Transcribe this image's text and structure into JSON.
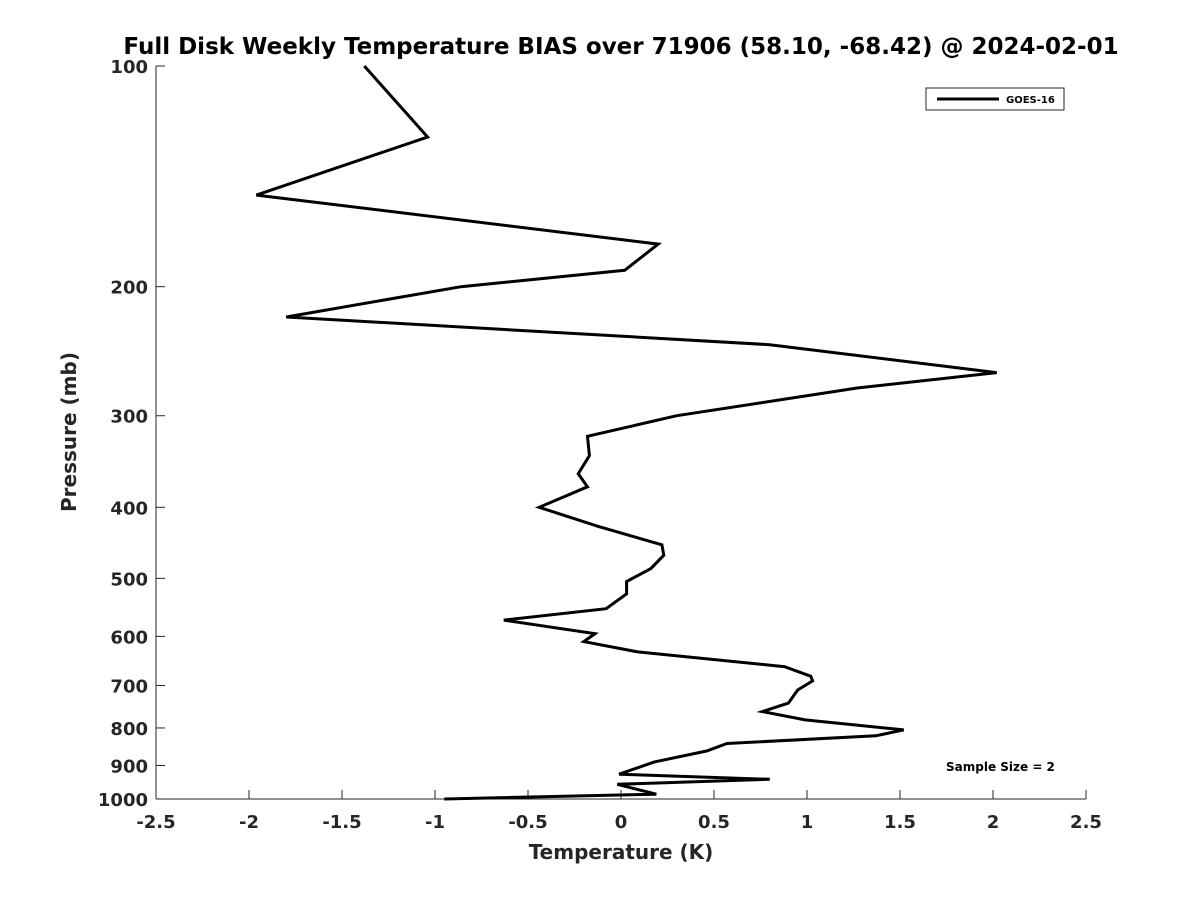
{
  "chart_data": {
    "type": "line",
    "title": "Full Disk Weekly Temperature BIAS over 71906 (58.10, -68.42) @ 2024-02-01",
    "xlabel": "Temperature (K)",
    "ylabel": "Pressure (mb)",
    "xlim": [
      -2.5,
      2.5
    ],
    "ylim": [
      100,
      1000
    ],
    "y_scale": "log",
    "y_reversed": true,
    "grid": false,
    "legend_position": "top-right",
    "x_ticks": [
      -2.5,
      -2,
      -1.5,
      -1,
      -0.5,
      0,
      0.5,
      1,
      1.5,
      2,
      2.5
    ],
    "x_tick_labels": [
      "-2.5",
      "-2",
      "-1.5",
      "-1",
      "-0.5",
      "0",
      "0.5",
      "1",
      "1.5",
      "2",
      "2.5"
    ],
    "y_ticks": [
      100,
      200,
      300,
      400,
      500,
      600,
      700,
      800,
      900,
      1000
    ],
    "y_tick_labels": [
      "100",
      "200",
      "300",
      "400",
      "500",
      "600",
      "700",
      "800",
      "900",
      "1000"
    ],
    "series": [
      {
        "name": "GOES-16",
        "color": "#000000",
        "points": [
          {
            "x": -1.38,
            "p": 100
          },
          {
            "x": -1.04,
            "p": 125
          },
          {
            "x": -1.96,
            "p": 150
          },
          {
            "x": 0.2,
            "p": 175
          },
          {
            "x": 0.02,
            "p": 190
          },
          {
            "x": -0.86,
            "p": 200
          },
          {
            "x": -1.8,
            "p": 220
          },
          {
            "x": 0.8,
            "p": 240
          },
          {
            "x": 2.02,
            "p": 262
          },
          {
            "x": 1.27,
            "p": 275
          },
          {
            "x": 0.3,
            "p": 300
          },
          {
            "x": -0.18,
            "p": 320
          },
          {
            "x": -0.17,
            "p": 340
          },
          {
            "x": -0.23,
            "p": 360
          },
          {
            "x": -0.18,
            "p": 375
          },
          {
            "x": -0.44,
            "p": 400
          },
          {
            "x": -0.12,
            "p": 425
          },
          {
            "x": 0.22,
            "p": 450
          },
          {
            "x": 0.23,
            "p": 465
          },
          {
            "x": 0.16,
            "p": 485
          },
          {
            "x": 0.03,
            "p": 505
          },
          {
            "x": 0.03,
            "p": 525
          },
          {
            "x": -0.08,
            "p": 550
          },
          {
            "x": -0.63,
            "p": 570
          },
          {
            "x": -0.14,
            "p": 595
          },
          {
            "x": -0.2,
            "p": 610
          },
          {
            "x": 0.09,
            "p": 630
          },
          {
            "x": 0.88,
            "p": 660
          },
          {
            "x": 1.02,
            "p": 680
          },
          {
            "x": 1.03,
            "p": 690
          },
          {
            "x": 0.95,
            "p": 710
          },
          {
            "x": 0.9,
            "p": 740
          },
          {
            "x": 0.76,
            "p": 760
          },
          {
            "x": 0.99,
            "p": 780
          },
          {
            "x": 1.52,
            "p": 805
          },
          {
            "x": 1.37,
            "p": 820
          },
          {
            "x": 0.57,
            "p": 840
          },
          {
            "x": 0.46,
            "p": 860
          },
          {
            "x": 0.18,
            "p": 890
          },
          {
            "x": -0.01,
            "p": 925
          },
          {
            "x": 0.8,
            "p": 940
          },
          {
            "x": -0.02,
            "p": 955
          },
          {
            "x": 0.19,
            "p": 985
          },
          {
            "x": -0.95,
            "p": 1000
          }
        ]
      }
    ],
    "annotations": [
      "Sample Size = 2"
    ]
  }
}
